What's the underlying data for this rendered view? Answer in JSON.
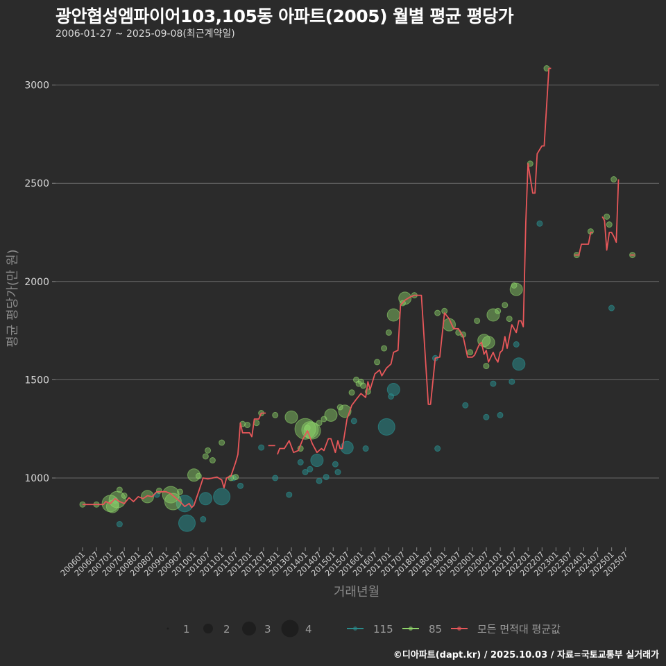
{
  "header": {
    "title": "광안협성엠파이어103,105동 아파트(2005) 월별 평균 평당가",
    "subtitle": "2006-01-27 ~ 2025-09-08(최근계약일)"
  },
  "footer": {
    "credit": "©디아파트(dapt.kr) / 2025.10.03 / 자료=국토교통부 실거래가"
  },
  "colors": {
    "background": "#2b2b2b",
    "grid": "#6a6a6a",
    "avg_line": "#e8575a",
    "series_115": "#2a8a8a",
    "series_85": "#8fd46a"
  },
  "chart_data": {
    "type": "line",
    "title": "광안협성엠파이어103,105동 아파트(2005) 월별 평균 평당가",
    "subtitle": "2006-01-27 ~ 2025-09-08(최근계약일)",
    "xlabel": "거래년월",
    "ylabel": "평균 평당가(만 원)",
    "ylim": [
      780,
      3150
    ],
    "yticks": [
      1000,
      1500,
      2000,
      2500,
      3000
    ],
    "grid": true,
    "legend_position": "bottom",
    "xticks": [
      "200601",
      "200607",
      "200701",
      "200707",
      "200801",
      "200807",
      "200901",
      "200907",
      "201001",
      "201007",
      "201101",
      "201107",
      "201201",
      "201207",
      "201301",
      "201307",
      "201401",
      "201407",
      "201501",
      "201507",
      "201601",
      "201607",
      "201701",
      "201707",
      "201801",
      "201807",
      "201901",
      "201907",
      "202001",
      "202007",
      "202101",
      "202107",
      "202201",
      "202207",
      "202301",
      "202307",
      "202401",
      "202407",
      "202501",
      "202507"
    ],
    "size_legend": {
      "title": "",
      "values": [
        "1",
        "2",
        "3",
        "4"
      ]
    },
    "series_legend": [
      {
        "name": "115",
        "color": "#2a8a8a"
      },
      {
        "name": "85",
        "color": "#8fd46a"
      },
      {
        "name": "모든 면적대 평균값",
        "color": "#e8575a"
      }
    ],
    "avg_line_segments": [
      [
        [
          2006.0,
          865
        ],
        [
          2006.5,
          865
        ],
        [
          2006.75,
          865
        ],
        [
          2006.83,
          880
        ],
        [
          2007.0,
          870
        ],
        [
          2007.17,
          895
        ],
        [
          2007.33,
          880
        ],
        [
          2007.5,
          870
        ],
        [
          2007.67,
          900
        ],
        [
          2007.83,
          880
        ],
        [
          2008.0,
          905
        ],
        [
          2008.17,
          895
        ],
        [
          2008.33,
          910
        ],
        [
          2008.5,
          905
        ],
        [
          2008.67,
          930
        ],
        [
          2008.83,
          930
        ],
        [
          2009.0,
          930
        ],
        [
          2009.17,
          920
        ],
        [
          2009.33,
          900
        ],
        [
          2009.5,
          880
        ],
        [
          2009.67,
          855
        ],
        [
          2009.83,
          870
        ],
        [
          2009.92,
          850
        ],
        [
          2010.0,
          860
        ],
        [
          2010.17,
          930
        ],
        [
          2010.33,
          1000
        ],
        [
          2010.5,
          995
        ],
        [
          2010.67,
          1000
        ],
        [
          2010.83,
          1005
        ],
        [
          2011.0,
          990
        ],
        [
          2011.08,
          950
        ],
        [
          2011.17,
          1000
        ],
        [
          2011.33,
          1010
        ],
        [
          2011.5,
          1080
        ],
        [
          2011.58,
          1120
        ],
        [
          2011.67,
          1280
        ],
        [
          2011.75,
          1230
        ],
        [
          2011.92,
          1230
        ],
        [
          2012.0,
          1230
        ],
        [
          2012.08,
          1210
        ],
        [
          2012.17,
          1300
        ],
        [
          2012.33,
          1300
        ],
        [
          2012.42,
          1330
        ],
        [
          2012.58,
          1330
        ]
      ],
      [
        [
          2012.67,
          1165
        ],
        [
          2012.92,
          1165
        ]
      ],
      [
        [
          2013.0,
          1120
        ],
        [
          2013.08,
          1150
        ],
        [
          2013.25,
          1150
        ],
        [
          2013.42,
          1190
        ],
        [
          2013.58,
          1130
        ],
        [
          2013.75,
          1140
        ],
        [
          2013.92,
          1200
        ],
        [
          2014.08,
          1240
        ],
        [
          2014.25,
          1175
        ],
        [
          2014.42,
          1130
        ],
        [
          2014.58,
          1150
        ],
        [
          2014.67,
          1140
        ],
        [
          2014.83,
          1200
        ],
        [
          2014.92,
          1200
        ],
        [
          2015.08,
          1130
        ],
        [
          2015.17,
          1190
        ],
        [
          2015.25,
          1150
        ],
        [
          2015.33,
          1150
        ],
        [
          2015.5,
          1300
        ],
        [
          2015.67,
          1370
        ],
        [
          2015.83,
          1400
        ],
        [
          2016.0,
          1430
        ],
        [
          2016.17,
          1410
        ],
        [
          2016.25,
          1490
        ],
        [
          2016.33,
          1450
        ],
        [
          2016.5,
          1530
        ],
        [
          2016.67,
          1550
        ],
        [
          2016.75,
          1520
        ],
        [
          2016.92,
          1560
        ],
        [
          2017.08,
          1580
        ],
        [
          2017.17,
          1640
        ],
        [
          2017.33,
          1650
        ],
        [
          2017.42,
          1880
        ],
        [
          2017.58,
          1905
        ],
        [
          2017.75,
          1920
        ],
        [
          2017.92,
          1930
        ],
        [
          2018.08,
          1930
        ],
        [
          2018.17,
          1930
        ],
        [
          2018.42,
          1375
        ],
        [
          2018.5,
          1375
        ],
        [
          2018.67,
          1610
        ],
        [
          2018.83,
          1615
        ],
        [
          2019.0,
          1840
        ],
        [
          2019.17,
          1810
        ],
        [
          2019.33,
          1760
        ],
        [
          2019.5,
          1760
        ],
        [
          2019.67,
          1720
        ],
        [
          2019.83,
          1615
        ],
        [
          2020.0,
          1615
        ],
        [
          2020.08,
          1625
        ],
        [
          2020.25,
          1680
        ],
        [
          2020.33,
          1690
        ],
        [
          2020.42,
          1630
        ],
        [
          2020.5,
          1650
        ],
        [
          2020.58,
          1590
        ],
        [
          2020.75,
          1640
        ],
        [
          2020.83,
          1610
        ],
        [
          2020.92,
          1590
        ],
        [
          2021.0,
          1640
        ],
        [
          2021.08,
          1650
        ],
        [
          2021.17,
          1720
        ],
        [
          2021.25,
          1660
        ],
        [
          2021.42,
          1780
        ],
        [
          2021.58,
          1740
        ],
        [
          2021.67,
          1800
        ],
        [
          2021.75,
          1800
        ],
        [
          2021.83,
          1770
        ],
        [
          2021.92,
          2300
        ],
        [
          2022.0,
          2600
        ],
        [
          2022.17,
          2450
        ],
        [
          2022.25,
          2450
        ],
        [
          2022.33,
          2650
        ],
        [
          2022.5,
          2690
        ],
        [
          2022.58,
          2690
        ],
        [
          2022.75,
          3085
        ],
        [
          2022.83,
          3085
        ]
      ],
      [
        [
          2023.67,
          2135
        ],
        [
          2023.83,
          2135
        ],
        [
          2023.92,
          2190
        ],
        [
          2024.0,
          2190
        ],
        [
          2024.17,
          2190
        ],
        [
          2024.25,
          2250
        ],
        [
          2024.33,
          2250
        ]
      ],
      [
        [
          2024.67,
          2330
        ],
        [
          2024.75,
          2310
        ],
        [
          2024.83,
          2160
        ],
        [
          2024.92,
          2250
        ],
        [
          2025.0,
          2250
        ],
        [
          2025.08,
          2230
        ],
        [
          2025.17,
          2200
        ],
        [
          2025.25,
          2520
        ]
      ],
      [
        [
          2025.67,
          2135
        ],
        [
          2025.83,
          2135
        ]
      ]
    ],
    "scatter_85": [
      [
        2006.0,
        865,
        1
      ],
      [
        2006.5,
        865,
        1
      ],
      [
        2007.0,
        870,
        3
      ],
      [
        2007.08,
        855,
        2
      ],
      [
        2007.25,
        890,
        3
      ],
      [
        2007.33,
        940,
        1
      ],
      [
        2007.5,
        910,
        1
      ],
      [
        2008.33,
        905,
        2
      ],
      [
        2008.75,
        935,
        1
      ],
      [
        2009.17,
        915,
        3
      ],
      [
        2009.25,
        880,
        3
      ],
      [
        2009.5,
        930,
        1
      ],
      [
        2010.0,
        1015,
        2
      ],
      [
        2010.17,
        1010,
        1
      ],
      [
        2010.42,
        1110,
        1
      ],
      [
        2010.5,
        1140,
        1
      ],
      [
        2010.67,
        1090,
        1
      ],
      [
        2011.0,
        1180,
        1
      ],
      [
        2011.33,
        1000,
        1
      ],
      [
        2011.5,
        1005,
        1
      ],
      [
        2011.75,
        1275,
        1
      ],
      [
        2011.92,
        1270,
        1
      ],
      [
        2012.25,
        1280,
        1
      ],
      [
        2012.42,
        1330,
        1
      ],
      [
        2012.92,
        1320,
        1
      ],
      [
        2013.5,
        1310,
        2
      ],
      [
        2013.83,
        1150,
        1
      ],
      [
        2014.0,
        1250,
        4
      ],
      [
        2014.17,
        1245,
        3
      ],
      [
        2014.25,
        1240,
        3
      ],
      [
        2014.08,
        1255,
        1
      ],
      [
        2014.5,
        1280,
        1
      ],
      [
        2014.67,
        1300,
        1
      ],
      [
        2014.92,
        1320,
        2
      ],
      [
        2015.25,
        1360,
        1
      ],
      [
        2015.42,
        1340,
        2
      ],
      [
        2015.67,
        1435,
        1
      ],
      [
        2015.83,
        1500,
        1
      ],
      [
        2015.92,
        1480,
        1
      ],
      [
        2016.0,
        1490,
        1
      ],
      [
        2016.08,
        1470,
        1
      ],
      [
        2016.25,
        1440,
        1
      ],
      [
        2016.58,
        1590,
        1
      ],
      [
        2016.83,
        1660,
        1
      ],
      [
        2017.0,
        1740,
        1
      ],
      [
        2017.17,
        1830,
        2
      ],
      [
        2017.5,
        1890,
        1
      ],
      [
        2017.58,
        1915,
        2
      ],
      [
        2017.92,
        1930,
        1
      ],
      [
        2018.75,
        1840,
        1
      ],
      [
        2019.0,
        1850,
        1
      ],
      [
        2019.17,
        1780,
        2
      ],
      [
        2019.5,
        1740,
        1
      ],
      [
        2019.67,
        1730,
        1
      ],
      [
        2019.92,
        1640,
        1
      ],
      [
        2020.17,
        1800,
        1
      ],
      [
        2020.42,
        1700,
        2
      ],
      [
        2020.58,
        1690,
        2
      ],
      [
        2020.5,
        1570,
        1
      ],
      [
        2020.75,
        1830,
        2
      ],
      [
        2020.92,
        1850,
        1
      ],
      [
        2021.17,
        1880,
        1
      ],
      [
        2021.33,
        1810,
        1
      ],
      [
        2021.58,
        1960,
        2
      ],
      [
        2021.5,
        1980,
        1
      ],
      [
        2022.08,
        2600,
        1
      ],
      [
        2022.67,
        3085,
        1
      ],
      [
        2023.75,
        2135,
        1
      ],
      [
        2024.25,
        2255,
        1
      ],
      [
        2024.92,
        2290,
        1
      ],
      [
        2024.83,
        2330,
        1
      ],
      [
        2025.08,
        2520,
        1
      ],
      [
        2025.75,
        2135,
        1
      ]
    ],
    "scatter_115": [
      [
        2007.33,
        765,
        1
      ],
      [
        2007.17,
        885,
        1
      ],
      [
        2008.67,
        915,
        1
      ],
      [
        2009.67,
        870,
        3
      ],
      [
        2009.75,
        770,
        3
      ],
      [
        2010.33,
        790,
        1
      ],
      [
        2010.42,
        895,
        2
      ],
      [
        2011.0,
        905,
        3
      ],
      [
        2011.42,
        1000,
        1
      ],
      [
        2011.67,
        960,
        1
      ],
      [
        2012.42,
        1155,
        1
      ],
      [
        2012.92,
        1000,
        1
      ],
      [
        2013.42,
        915,
        1
      ],
      [
        2013.83,
        1080,
        1
      ],
      [
        2014.0,
        1030,
        1
      ],
      [
        2014.17,
        1045,
        1
      ],
      [
        2014.42,
        1090,
        2
      ],
      [
        2014.5,
        985,
        1
      ],
      [
        2014.75,
        1005,
        1
      ],
      [
        2015.08,
        1070,
        1
      ],
      [
        2015.17,
        1030,
        1
      ],
      [
        2015.5,
        1155,
        2
      ],
      [
        2015.75,
        1290,
        1
      ],
      [
        2016.17,
        1150,
        1
      ],
      [
        2016.92,
        1260,
        3
      ],
      [
        2017.08,
        1415,
        1
      ],
      [
        2017.17,
        1450,
        2
      ],
      [
        2018.67,
        1610,
        1
      ],
      [
        2018.75,
        1150,
        1
      ],
      [
        2019.75,
        1370,
        1
      ],
      [
        2020.5,
        1310,
        1
      ],
      [
        2020.75,
        1480,
        1
      ],
      [
        2021.0,
        1320,
        1
      ],
      [
        2021.42,
        1490,
        1
      ],
      [
        2021.67,
        1580,
        2
      ],
      [
        2021.58,
        1680,
        1
      ],
      [
        2022.42,
        2295,
        1
      ],
      [
        2025.0,
        1865,
        1
      ]
    ]
  }
}
